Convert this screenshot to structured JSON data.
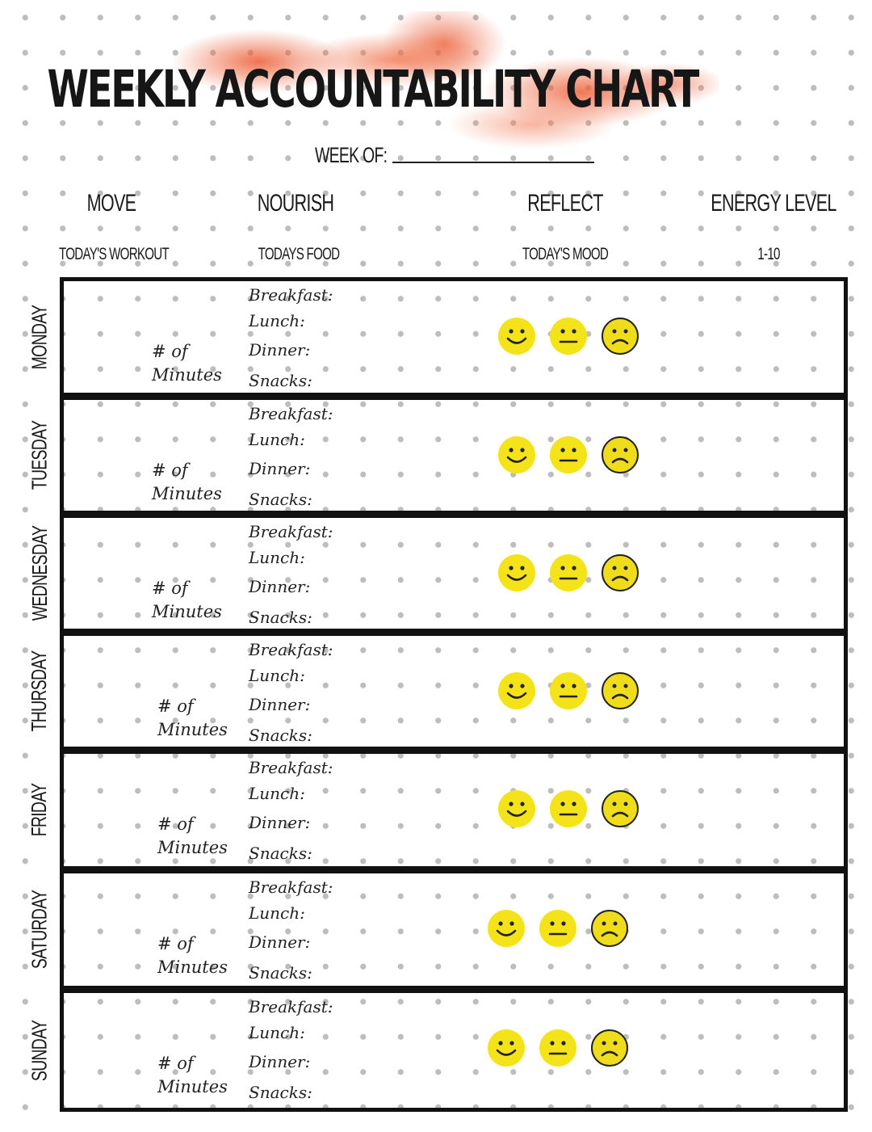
{
  "title": "WEEKLY ACCOUNTABILITY CHART",
  "week_of_label": "WEEK OF:",
  "columns": [
    {
      "heading": "MOVE",
      "subheading": "TODAY'S WORKOUT"
    },
    {
      "heading": "NOURISH",
      "subheading": "TODAYS FOOD"
    },
    {
      "heading": "REFLECT",
      "subheading": "TODAY'S MOOD"
    },
    {
      "heading": "ENERGY LEVEL",
      "subheading": "1-10"
    }
  ],
  "minutes_label_1": "# of",
  "minutes_label_2": "Minutes",
  "meals": [
    "Breakfast:",
    "Lunch:",
    "Dinner:",
    "Snacks:"
  ],
  "mood_icons": [
    "happy-face-icon",
    "neutral-face-icon",
    "sad-face-icon"
  ],
  "colors": {
    "accent_splash": "#ec5c34",
    "face_yellow": "#f5e31a",
    "border": "#111111"
  },
  "days": [
    "MONDAY",
    "TUESDAY",
    "WEDNESDAY",
    "THURSDAY",
    "FRIDAY",
    "SATURDAY",
    "SUNDAY"
  ]
}
